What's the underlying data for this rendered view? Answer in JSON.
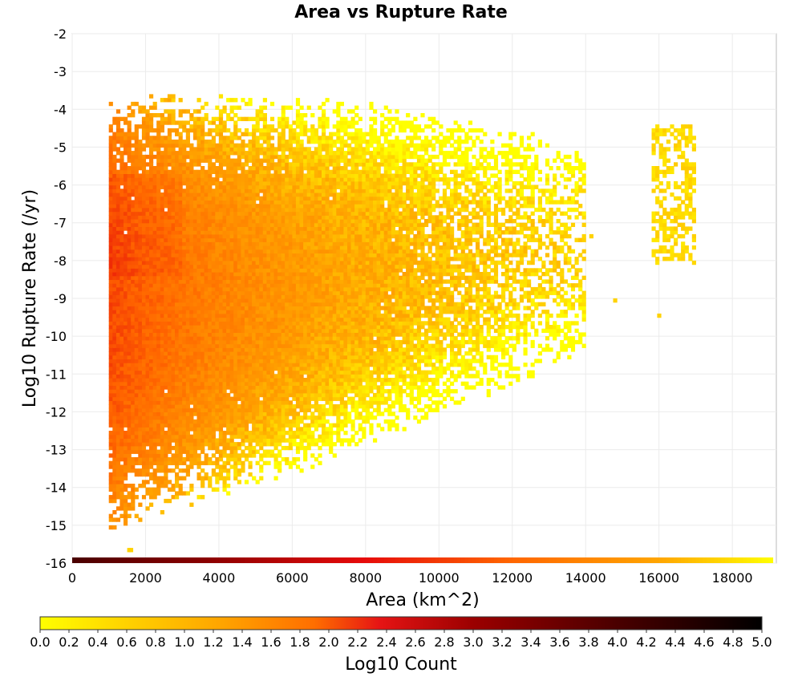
{
  "chart_data": {
    "type": "heatmap",
    "title": "Area vs Rupture Rate",
    "xlabel": "Area (km^2)",
    "ylabel": "Log10 Rupture Rate (/yr)",
    "xlim": [
      0,
      19200
    ],
    "ylim": [
      -16,
      -2
    ],
    "x_ticks": [
      "0",
      "2000",
      "4000",
      "6000",
      "8000",
      "10000",
      "12000",
      "14000",
      "16000",
      "18000"
    ],
    "y_ticks": [
      "-2",
      "-3",
      "-4",
      "-5",
      "-6",
      "-7",
      "-8",
      "-9",
      "-10",
      "-11",
      "-12",
      "-13",
      "-14",
      "-15",
      "-16"
    ],
    "grid": true,
    "colorbar": {
      "label": "Log10 Count",
      "range": [
        0.0,
        5.0
      ],
      "ticks": [
        "0.0",
        "0.2",
        "0.4",
        "0.6",
        "0.8",
        "1.0",
        "1.2",
        "1.4",
        "1.6",
        "1.8",
        "2.0",
        "2.2",
        "2.4",
        "2.6",
        "2.8",
        "3.0",
        "3.2",
        "3.4",
        "3.6",
        "3.8",
        "4.0",
        "4.2",
        "4.4",
        "4.6",
        "4.8",
        "5.0"
      ],
      "colors": [
        "#ffff00",
        "#ffa500",
        "#ff6400",
        "#e60a0a",
        "#8b0000",
        "#000000"
      ]
    },
    "bin_size": {
      "x": 100,
      "y": 0.1
    },
    "density_regions": [
      {
        "x": [
          1000,
          3000
        ],
        "y": [
          -8.5,
          -6
        ],
        "log10_count": 1.5
      },
      {
        "x": [
          1000,
          5000
        ],
        "y": [
          -13,
          -5.5
        ],
        "log10_count": 1.1
      },
      {
        "x": [
          5000,
          9000
        ],
        "y": [
          -13,
          -5.5
        ],
        "log10_count": 0.9
      },
      {
        "x": [
          9000,
          11000
        ],
        "y": [
          -12.5,
          -5.5
        ],
        "log10_count": 0.6
      },
      {
        "x": [
          11000,
          13800
        ],
        "y": [
          -12,
          -5
        ],
        "log10_count": 0.3
      },
      {
        "x": [
          15800,
          16800
        ],
        "y": [
          -8,
          -4.5
        ],
        "log10_count": 0.2
      }
    ],
    "bottom_row": {
      "y": -16,
      "x": [
        0,
        19200
      ],
      "log10_count_start": 4.0,
      "log10_count_end": 0.0
    }
  }
}
